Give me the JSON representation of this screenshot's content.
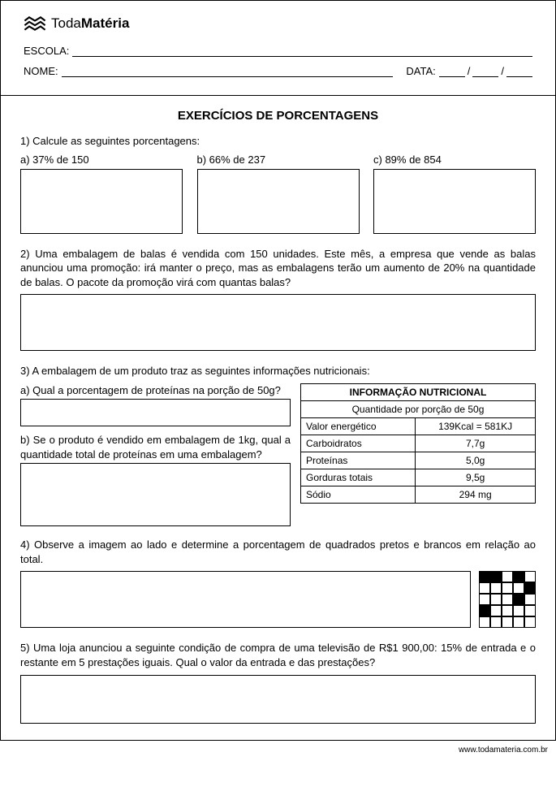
{
  "logo": {
    "brand_a": "Toda",
    "brand_b": "Matéria"
  },
  "header": {
    "escola": "ESCOLA:",
    "nome": "NOME:",
    "data": "DATA:"
  },
  "title": "EXERCÍCIOS DE PORCENTAGENS",
  "q1": {
    "prompt": "1) Calcule as seguintes porcentagens:",
    "a": "a) 37% de 150",
    "b": "b) 66% de 237",
    "c": "c) 89% de 854"
  },
  "q2": "2) Uma embalagem de balas é vendida com 150 unidades. Este mês, a empresa que vende as balas anunciou uma promoção: irá manter o preço, mas as embalagens terão um aumento de 20% na quantidade de balas. O pacote da promoção virá com quantas balas?",
  "q3": {
    "prompt": "3) A embalagem de um produto traz as seguintes informações nutricionais:",
    "a": "a) Qual a porcentagem de proteínas na porção de 50g?",
    "b": "b) Se o produto é vendido em embalagem de 1kg, qual a quantidade total de proteínas em uma embalagem?",
    "table": {
      "title": "INFORMAÇÃO NUTRICIONAL",
      "sub": "Quantidade por porção de 50g",
      "rows": [
        [
          "Valor energético",
          "139Kcal = 581KJ"
        ],
        [
          "Carboidratos",
          "7,7g"
        ],
        [
          "Proteínas",
          "5,0g"
        ],
        [
          "Gorduras totais",
          "9,5g"
        ],
        [
          "Sódio",
          "294 mg"
        ]
      ]
    }
  },
  "q4": {
    "prompt": "4) Observe a imagem ao lado e determine a porcentagem de quadrados pretos e brancos em relação ao total.",
    "grid": [
      [
        1,
        1,
        0,
        1,
        0
      ],
      [
        0,
        0,
        0,
        0,
        1
      ],
      [
        0,
        0,
        0,
        1,
        0
      ],
      [
        1,
        0,
        0,
        0,
        0
      ],
      [
        0,
        0,
        0,
        0,
        0
      ]
    ],
    "colors": {
      "black": "#000000",
      "white": "#ffffff",
      "border": "#000000"
    }
  },
  "q5": "5) Uma loja anunciou a seguinte condição de compra de uma televisão de R$1 900,00: 15% de entrada e o restante em 5 prestações iguais. Qual o valor da entrada e das prestações?",
  "footer": "www.todamateria.com.br"
}
